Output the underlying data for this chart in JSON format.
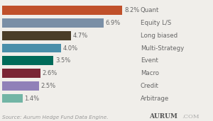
{
  "categories": [
    "Quant",
    "Equity L/S",
    "Long biased",
    "Multi-Strategy",
    "Event",
    "Macro",
    "Credit",
    "Arbitrage"
  ],
  "values": [
    8.2,
    6.9,
    4.7,
    4.0,
    3.5,
    2.6,
    2.5,
    1.4
  ],
  "labels": [
    "8.2%",
    "6.9%",
    "4.7%",
    "4.0%",
    "3.5%",
    "2.6%",
    "2.5%",
    "1.4%"
  ],
  "colors": [
    "#c0502a",
    "#7a8fa6",
    "#4a3d28",
    "#4a8faa",
    "#006b5a",
    "#7a2535",
    "#9080b8",
    "#72b5a5"
  ],
  "bg_color": "#f0eeea",
  "source_text": "Source: Aurum Hedge Fund Data Engine.",
  "logo_text_aurum": "AURUM",
  "logo_text_com": ".COM",
  "bar_height": 0.72,
  "xlim_bar": 9.0,
  "label_fontsize": 6.0,
  "category_fontsize": 6.2,
  "source_fontsize": 5.2,
  "logo_fontsize": 6.5
}
